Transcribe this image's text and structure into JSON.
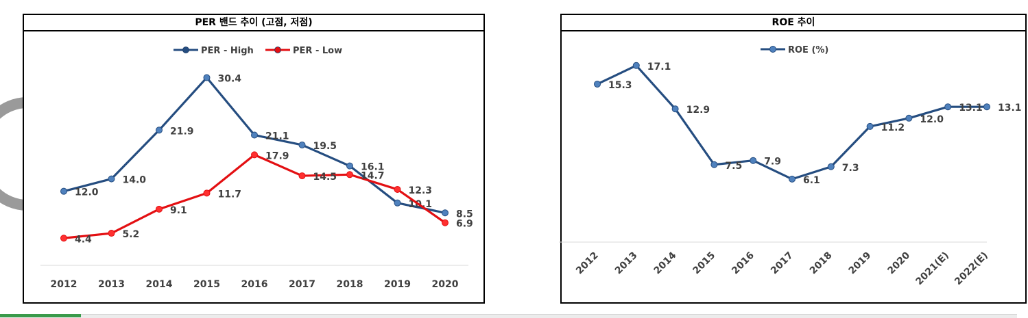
{
  "colors": {
    "high": "#254d80",
    "low": "#e30f12",
    "roe": "#254d80",
    "frame": "#000000"
  },
  "chart_data": [
    {
      "type": "line",
      "title": "PER 밴드 추이 (고점, 저점)",
      "categories": [
        "2012",
        "2013",
        "2014",
        "2015",
        "2016",
        "2017",
        "2018",
        "2019",
        "2020"
      ],
      "series": [
        {
          "name": "PER - High",
          "values": [
            12.0,
            14.0,
            21.9,
            30.4,
            21.1,
            19.5,
            16.1,
            10.1,
            8.5
          ],
          "labels": [
            "12.0",
            "14.0",
            "21.9",
            "30.4",
            "21.1",
            "19.5",
            "16.1",
            "10.1",
            "8.5"
          ]
        },
        {
          "name": "PER - Low",
          "values": [
            4.4,
            5.2,
            9.1,
            11.7,
            17.9,
            14.5,
            14.7,
            12.3,
            6.9
          ],
          "labels": [
            "4.4",
            "5.2",
            "9.1",
            "11.7",
            "17.9",
            "14.5",
            "14.7",
            "12.3",
            "6.9"
          ]
        }
      ],
      "ylim": [
        0,
        35
      ],
      "legend": "top",
      "grid": false
    },
    {
      "type": "line",
      "title": "ROE 추이",
      "categories": [
        "2012",
        "2013",
        "2014",
        "2015",
        "2016",
        "2017",
        "2018",
        "2019",
        "2020",
        "2021(E)",
        "2022(E)"
      ],
      "series": [
        {
          "name": "ROE (%)",
          "values": [
            15.3,
            17.1,
            12.9,
            7.5,
            7.9,
            6.1,
            7.3,
            11.2,
            12.0,
            13.1,
            13.1
          ],
          "labels": [
            "15.3",
            "17.1",
            "12.9",
            "7.5",
            "7.9",
            "6.1",
            "7.3",
            "11.2",
            "12.0",
            "13.1",
            "13.1"
          ]
        }
      ],
      "ylim": [
        0,
        20
      ],
      "legend": "top",
      "grid": false
    }
  ]
}
